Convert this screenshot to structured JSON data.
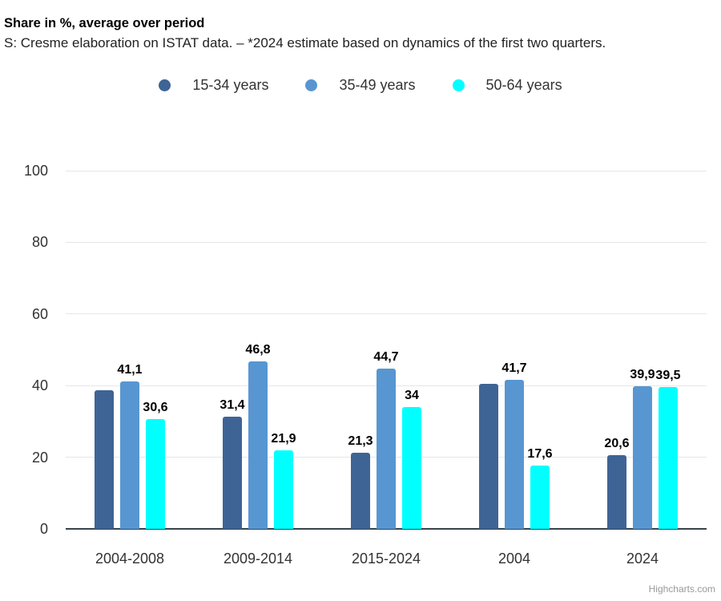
{
  "header": {
    "title": "Share in %, average over period",
    "subtitle": "S: Cresme elaboration on ISTAT data. – *2024 estimate based on dynamics of the first two quarters."
  },
  "credit": {
    "label": "Highcharts.com"
  },
  "colors": {
    "series_15_34": "#3e6496",
    "series_35_49": "#5896d2",
    "series_50_64": "#00ffff",
    "gridline": "#e6e6e6",
    "axis_line": "#37424a",
    "axis_text": "#333333"
  },
  "chart_data": {
    "type": "bar",
    "title": "Share in %, average over period",
    "subtitle": "S: Cresme elaboration on ISTAT data. – *2024 estimate based on dynamics of the first two quarters.",
    "categories": [
      "2004-2008",
      "2009-2014",
      "2015-2024",
      "2004",
      "2024"
    ],
    "series": [
      {
        "name": "15-34 years",
        "color": "#3e6496",
        "values": [
          38.6,
          31.4,
          21.3,
          40.6,
          20.6
        ],
        "data_labels": [
          "",
          "31,4",
          "21,3",
          "",
          "20,6"
        ]
      },
      {
        "name": "35-49 years",
        "color": "#5896d2",
        "values": [
          41.1,
          46.8,
          44.7,
          41.7,
          39.9
        ],
        "data_labels": [
          "41,1",
          "46,8",
          "44,7",
          "41,7",
          "39,9"
        ]
      },
      {
        "name": "50-64 years",
        "color": "#00ffff",
        "values": [
          30.6,
          21.9,
          34,
          17.6,
          39.5
        ],
        "data_labels": [
          "30,6",
          "21,9",
          "34",
          "17,6",
          "39,5"
        ]
      }
    ],
    "xlabel": "",
    "ylabel": "",
    "ylim": [
      0,
      100
    ],
    "yticks": [
      0,
      20,
      40,
      60,
      80,
      100
    ],
    "grid": true,
    "legend_position": "top",
    "values_unit": "%"
  }
}
